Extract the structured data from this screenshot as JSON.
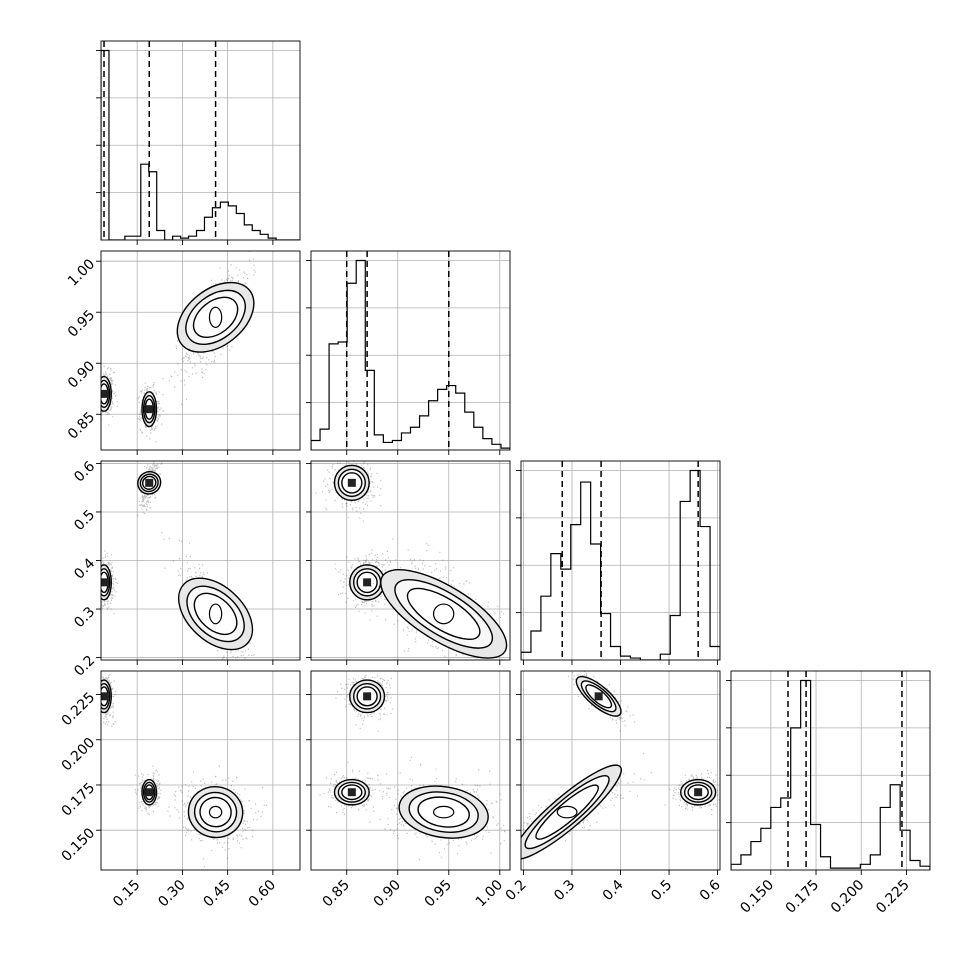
{
  "chart_data": {
    "type": "corner",
    "n_params": 4,
    "grid": true,
    "params": [
      {
        "range": [
          0.03,
          0.69
        ],
        "ticks": [
          0.15,
          0.3,
          0.45,
          0.6
        ],
        "tick_labels": [
          "0.15",
          "0.30",
          "0.45",
          "0.60"
        ],
        "quantiles": [
          0.04,
          0.19,
          0.41
        ],
        "hist_counts": [
          100,
          0,
          0,
          2,
          2,
          40,
          36,
          5,
          0,
          2,
          1,
          2,
          5,
          12,
          17,
          20,
          18,
          14,
          8,
          5,
          3,
          1,
          0,
          0,
          0
        ]
      },
      {
        "range": [
          0.815,
          1.01
        ],
        "ticks": [
          0.85,
          0.9,
          0.95,
          1.0
        ],
        "tick_labels": [
          "0.85",
          "0.90",
          "0.95",
          "1.00"
        ],
        "quantiles": [
          0.85,
          0.87,
          0.95
        ],
        "hist_counts": [
          5,
          11,
          56,
          57,
          88,
          100,
          42,
          8,
          4,
          5,
          9,
          12,
          18,
          26,
          32,
          34,
          30,
          20,
          12,
          6,
          3,
          1
        ]
      },
      {
        "range": [
          0.195,
          0.605
        ],
        "ticks": [
          0.2,
          0.3,
          0.4,
          0.5,
          0.6
        ],
        "tick_labels": [
          "0.2",
          "0.3",
          "0.4",
          "0.5",
          "0.6"
        ],
        "quantiles": [
          0.28,
          0.36,
          0.56
        ],
        "hist_counts": [
          4,
          15,
          33,
          55,
          47,
          70,
          92,
          60,
          24,
          7,
          2,
          1,
          0,
          0,
          3,
          23,
          82,
          98,
          69,
          7
        ]
      },
      {
        "range": [
          0.128,
          0.238
        ],
        "ticks": [
          0.15,
          0.175,
          0.2,
          0.225
        ],
        "tick_labels": [
          "0.150",
          "0.175",
          "0.200",
          "0.225"
        ],
        "quantiles": [
          0.1595,
          0.1695,
          0.2225
        ],
        "hist_counts": [
          3,
          8,
          15,
          22,
          33,
          38,
          75,
          100,
          24,
          7,
          1,
          1,
          1,
          3,
          8,
          33,
          45,
          21,
          5,
          2
        ]
      }
    ],
    "modes": [
      {
        "mean": [
          0.04,
          0.87,
          0.355,
          0.224
        ],
        "sd": [
          0.012,
          0.0085,
          0.018,
          0.0045
        ],
        "weight": 0.33
      },
      {
        "mean": [
          0.19,
          0.855,
          0.56,
          0.171
        ],
        "sd": [
          0.012,
          0.0085,
          0.018,
          0.0035
        ],
        "weight": 0.27
      },
      {
        "mean": [
          0.41,
          0.945,
          0.29,
          0.16
        ],
        "sd": [
          0.045,
          0.022,
          0.045,
          0.007
        ],
        "weight": 0.4
      }
    ]
  }
}
